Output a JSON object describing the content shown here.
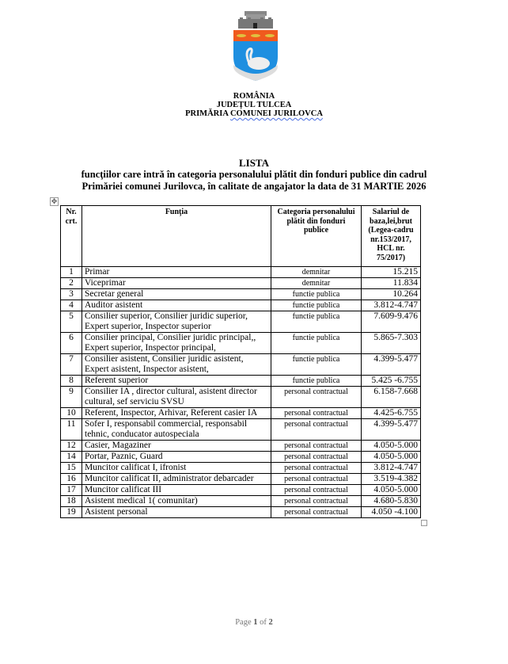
{
  "header": {
    "line1": "ROMÂNIA",
    "line2": "JUDEȚUL TULCEA",
    "line3_a": "PRIMĂRIA ",
    "line3_b": "COMUNEI JURILOVCA"
  },
  "title": {
    "main": "LISTA",
    "line1": "funcţiilor care intră în categoria personalului plătit din fonduri publice din cadrul",
    "line2": "Primăriei comunei Jurilovca, în calitate de angajator la data de 31 MARTIE 2026"
  },
  "colors": {
    "crest_red": "#f05a1e",
    "crest_blue": "#1e8fe0",
    "crest_gray": "#7a7a7a"
  },
  "table": {
    "headers": [
      "Nr. crt.",
      "Funţia",
      "Categoria personalului plătit din fonduri publice",
      "Salariul de baza,lei,brut (Legea-cadru nr.153/2017, HCL nr. 75/2017)"
    ],
    "rows": [
      {
        "nr": "1",
        "functia": "Primar",
        "categoria": "demnitar",
        "salariu": "15.215"
      },
      {
        "nr": "2",
        "functia": "Viceprimar",
        "categoria": "demnitar",
        "salariu": "11.834"
      },
      {
        "nr": "3",
        "functia": "Secretar general",
        "categoria": "functie publica",
        "salariu": "10.264"
      },
      {
        "nr": "4",
        "functia": "Auditor asistent",
        "categoria": "functie publica",
        "salariu": "3.812-4.747"
      },
      {
        "nr": "5",
        "functia": "Consilier superior, Consilier juridic superior, Expert superior, Inspector superior",
        "categoria": "functie publica",
        "salariu": "7.609-9.476"
      },
      {
        "nr": "6",
        "functia": "Consilier principal, Consilier juridic principal,, Expert superior, Inspector principal,",
        "categoria": "functie publica",
        "salariu": "5.865-7.303"
      },
      {
        "nr": "7",
        "functia": "Consilier asistent, Consilier juridic asistent, Expert asistent, Inspector asistent,",
        "categoria": "functie publica",
        "salariu": "4.399-5.477"
      },
      {
        "nr": "8",
        "functia": "Referent superior",
        "categoria": "functie publica",
        "salariu": "5.425 -6.755"
      },
      {
        "nr": "9",
        "functia": "Consilier IA , director cultural, asistent director cultural, sef serviciu SVSU",
        "categoria": "personal contractual",
        "salariu": "6.158-7.668"
      },
      {
        "nr": "10",
        "functia": "Referent, Inspector, Arhivar, Referent casier IA",
        "categoria": "personal contractual",
        "salariu": "4.425-6.755"
      },
      {
        "nr": "11",
        "functia": "Sofer I, responsabil commercial, responsabil tehnic, conducator autospeciala",
        "categoria": "personal contractual",
        "salariu": "4.399-5.477"
      },
      {
        "nr": "12",
        "functia": "Casier, Magaziner",
        "categoria": "personal contractual",
        "salariu": "4.050-5.000"
      },
      {
        "nr": "14",
        "functia": "Portar, Paznic, Guard",
        "categoria": "personal contractual",
        "salariu": "4.050-5.000"
      },
      {
        "nr": "15",
        "functia": "Muncitor calificat I, ifronist",
        "categoria": "personal contractual",
        "salariu": "3.812-4.747"
      },
      {
        "nr": "16",
        "functia": "Muncitor calificat II, administrator debarcader",
        "categoria": "personal contractual",
        "salariu": "3.519-4.382"
      },
      {
        "nr": "17",
        "functia": "Muncitor calificat III",
        "categoria": "personal contractual",
        "salariu": "4.050-5.000"
      },
      {
        "nr": "18",
        "functia": "Asistent medical 1( comunitar)",
        "categoria": "personal contractual",
        "salariu": "4.680-5.830"
      },
      {
        "nr": "19",
        "functia": "Asistent personal",
        "categoria": "personal contractual",
        "salariu": "4.050 -4.100"
      }
    ]
  },
  "footer": {
    "page_label": "Page ",
    "current": "1",
    "of": " of ",
    "total": "2"
  }
}
